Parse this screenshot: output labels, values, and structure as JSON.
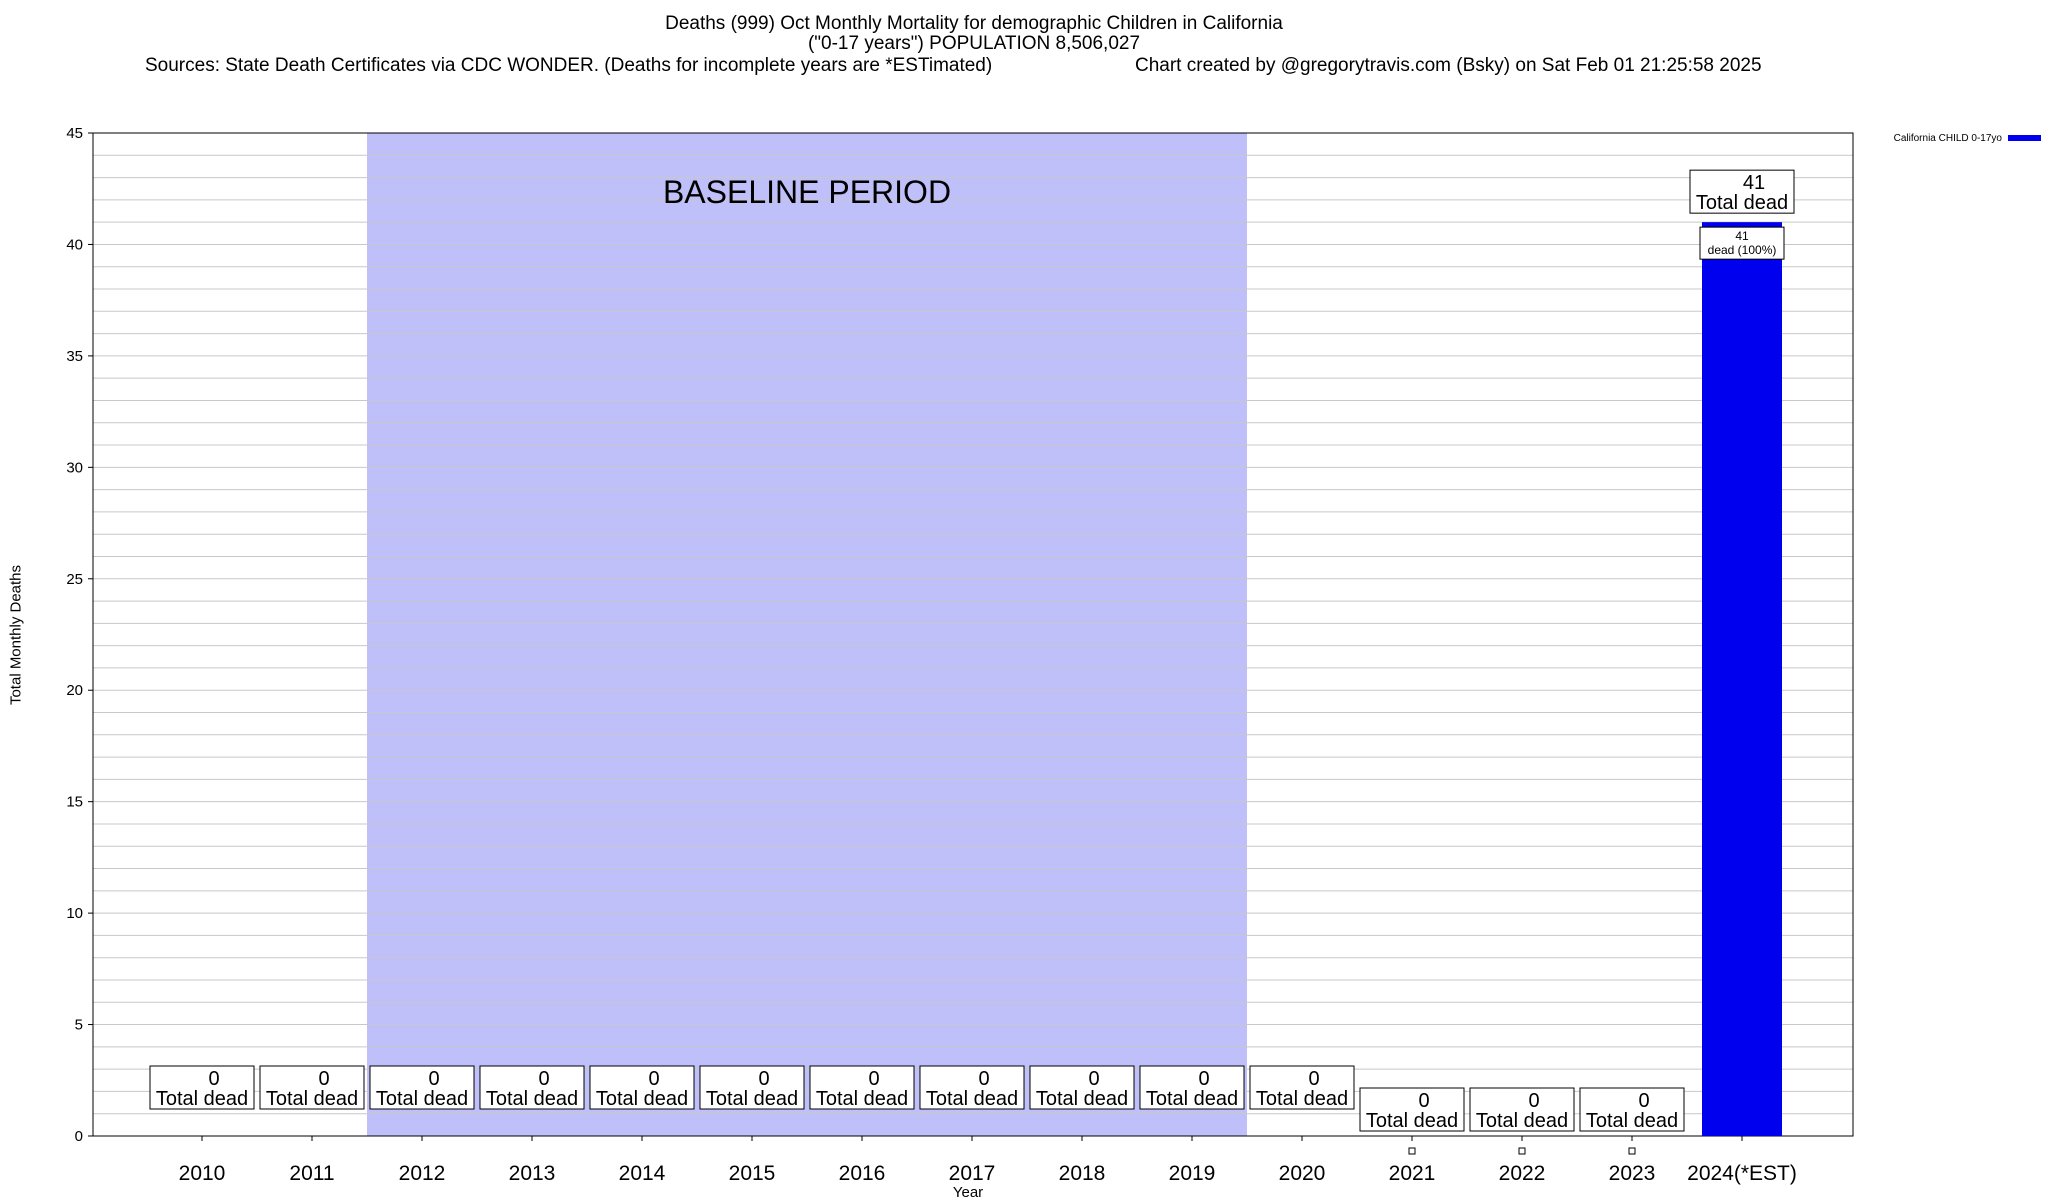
{
  "header": {
    "title_line1": "Deaths (999) Oct Monthly Mortality for demographic Children in California",
    "title_line2": "(\"0-17 years\") POPULATION 8,506,027",
    "sources": "Sources: State Death Certificates via CDC WONDER. (Deaths for incomplete years are *ESTimated)",
    "credit": "Chart created by @gregorytravis.com (Bsky) on Sat Feb 01 21:25:58 2025"
  },
  "chart_data": {
    "type": "bar",
    "title": "Deaths (999) Oct Monthly Mortality for demographic Children in California",
    "xlabel": "Year",
    "ylabel": "Total Monthly Deaths",
    "ylim": [
      0,
      45
    ],
    "y_ticks": [
      0,
      5,
      10,
      15,
      20,
      25,
      30,
      35,
      40,
      45
    ],
    "grid": "horizontal",
    "categories": [
      "2010",
      "2011",
      "2012",
      "2013",
      "2014",
      "2015",
      "2016",
      "2017",
      "2018",
      "2019",
      "2020",
      "2021",
      "2022",
      "2023",
      "2024(*EST)"
    ],
    "series": [
      {
        "name": "California CHILD 0-17yo",
        "color": "#0000ee",
        "values": [
          0,
          0,
          0,
          0,
          0,
          0,
          0,
          0,
          0,
          0,
          0,
          0,
          0,
          0,
          41
        ]
      }
    ],
    "total_label_value_lines": [
      "0",
      "0",
      "0",
      "0",
      "0",
      "0",
      "0",
      "0",
      "0",
      "0",
      "0",
      "0",
      "0",
      "0",
      "41"
    ],
    "total_label_suffix": "Total dead",
    "inner_label_value": "41",
    "inner_label_text": "dead (100%)",
    "baseline": {
      "label": "BASELINE PERIOD",
      "from": "2012",
      "to": "2019",
      "color": "#bfbff9"
    },
    "legend": {
      "position": "top-right",
      "entries": [
        {
          "name": "California CHILD 0-17yo",
          "color": "#0000ee"
        }
      ]
    }
  }
}
